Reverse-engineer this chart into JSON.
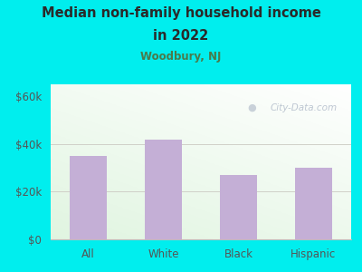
{
  "categories": [
    "All",
    "White",
    "Black",
    "Hispanic"
  ],
  "values": [
    35000,
    42000,
    27000,
    30000
  ],
  "bar_color": "#c4afd6",
  "title_line1": "Median non-family household income",
  "title_line2": "in 2022",
  "subtitle": "Woodbury, NJ",
  "title_color": "#2a2a2a",
  "subtitle_color": "#4a7a4a",
  "background_color": "#00eeee",
  "plot_bg_topleft": "#d8edd8",
  "plot_bg_topright": "#e8f0e8",
  "plot_bg_bottom": "#f5f5ec",
  "tick_color": "#555555",
  "ylabel_ticks": [
    0,
    20000,
    40000,
    60000
  ],
  "ylabel_labels": [
    "$0",
    "$20k",
    "$40k",
    "$60k"
  ],
  "ylim": [
    0,
    65000
  ],
  "gridline_color": "#d0d0c8",
  "watermark": "City-Data.com"
}
